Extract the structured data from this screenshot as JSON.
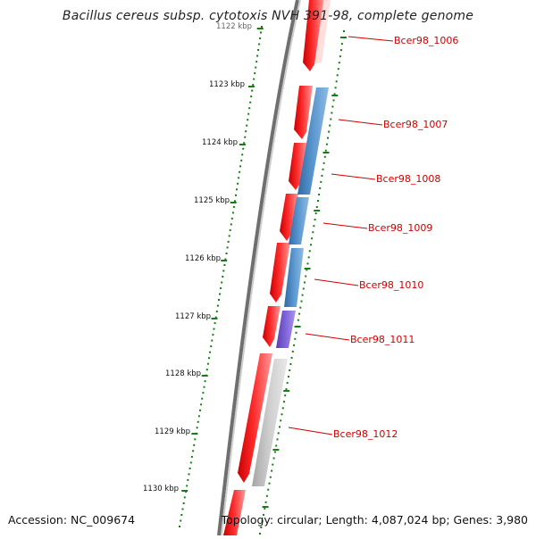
{
  "title": "Bacillus cereus subsp. cytotoxis NVH 391-98, complete genome",
  "footer": {
    "accession": "Accession: NC_009674",
    "summary": "Topology: circular; Length: 4,087,024 bp; Genes: 3,980"
  },
  "scale_labels": [
    {
      "text": "1122 kbp"
    },
    {
      "text": "1123 kbp"
    },
    {
      "text": "1124 kbp"
    },
    {
      "text": "1125 kbp"
    },
    {
      "text": "1126 kbp"
    },
    {
      "text": "1127 kbp"
    },
    {
      "text": "1128 kbp"
    },
    {
      "text": "1129 kbp"
    },
    {
      "text": "1130 kbp"
    }
  ],
  "gene_labels": [
    {
      "text": "Bcer98_1006"
    },
    {
      "text": "Bcer98_1007"
    },
    {
      "text": "Bcer98_1008"
    },
    {
      "text": "Bcer98_1009"
    },
    {
      "text": "Bcer98_1010"
    },
    {
      "text": "Bcer98_1011"
    },
    {
      "text": "Bcer98_1012"
    }
  ],
  "colors": {
    "cds": "#ff0000",
    "blue_feature": "#4b86c2",
    "purple_feature": "#7a5ccf",
    "grey_feature": "#c0c0c0",
    "backbone": "#888888",
    "tick": "#1a7a1a",
    "label_red": "#cc0000"
  }
}
